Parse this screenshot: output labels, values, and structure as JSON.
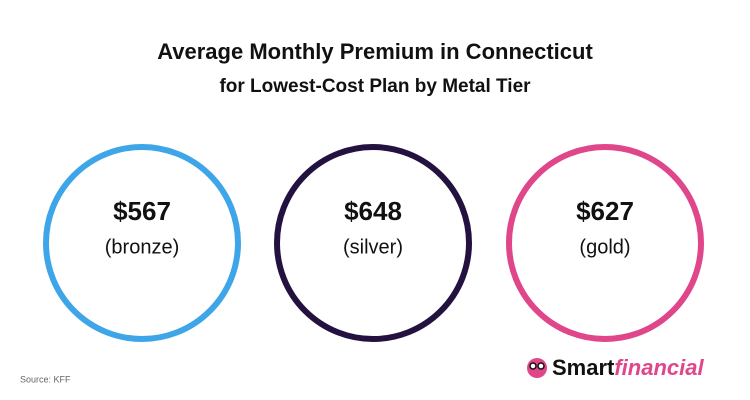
{
  "header": {
    "title": "Average Monthly Premium in Connecticut",
    "subtitle": "for Lowest-Cost Plan by Metal Tier"
  },
  "items": [
    {
      "value": "$567",
      "tier": "(bronze)",
      "color": "#3ea6e8"
    },
    {
      "value": "$648",
      "tier": "(silver)",
      "color": "#23123f"
    },
    {
      "value": "$627",
      "tier": "(gold)",
      "color": "#e0468a"
    }
  ],
  "source": "Source: KFF",
  "logo": {
    "bold": "Smart",
    "italic": "financial"
  }
}
